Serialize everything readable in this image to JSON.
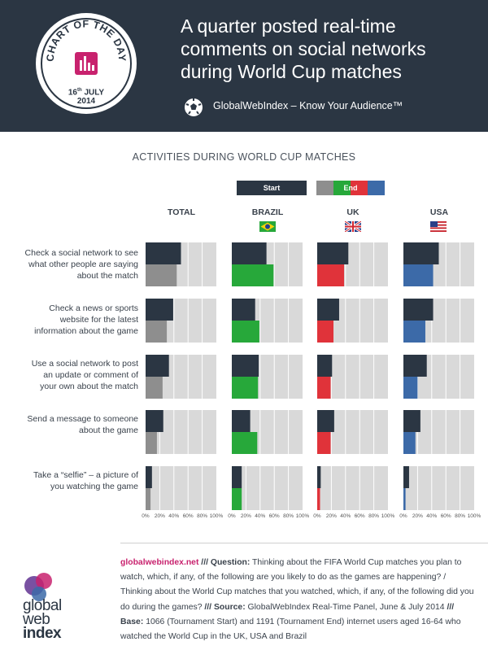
{
  "header": {
    "badge_text": "CHART OF THE DAY",
    "badge_date_day": "16",
    "badge_date_suffix": "th",
    "badge_date_rest": "JULY",
    "badge_date_year": "2014",
    "title": "A quarter posted real-time comments on social networks during World Cup matches",
    "tagline": "GlobalWebIndex – Know Your Audience™"
  },
  "colors": {
    "start": "#2b3643",
    "total_end": "#8e8e8e",
    "brazil_end": "#27a83a",
    "uk_end": "#e0333a",
    "usa_end": "#3c6aa8",
    "track": "#d9d9d9",
    "accent": "#c8226e"
  },
  "chart_data": {
    "type": "bar",
    "title": "ACTIVITIES DURING WORLD CUP MATCHES",
    "legend": {
      "start": "Start",
      "end": "End"
    },
    "columns": [
      "TOTAL",
      "BRAZIL",
      "UK",
      "USA"
    ],
    "categories": [
      "Check a social network to see what other people are saying about the match",
      "Check a news or sports website for the latest information about the game",
      "Use a social network to post an update or comment of your own about the match",
      "Send a message to someone about the game",
      "Take a “selfie” – a picture of you watching the game"
    ],
    "category_lines": [
      [
        "Check a social network to see",
        "what other people are saying",
        "about the match"
      ],
      [
        "Check a news or sports",
        "website for the latest",
        "information about the game"
      ],
      [
        "Use a social network to post",
        "an update or comment of",
        "your own about the match"
      ],
      [
        "Send a message to someone",
        "about the game"
      ],
      [
        "Take a “selfie” – a picture of",
        "you watching the game"
      ]
    ],
    "xlim": [
      0,
      100
    ],
    "x_ticks": [
      "0%",
      "20%",
      "40%",
      "60%",
      "80%",
      "100%"
    ],
    "series": [
      {
        "name": "Start",
        "values": {
          "TOTAL": [
            50,
            39,
            33,
            25,
            9
          ],
          "BRAZIL": [
            49,
            33,
            38,
            26,
            14
          ],
          "UK": [
            44,
            31,
            21,
            24,
            5
          ],
          "USA": [
            50,
            42,
            33,
            24,
            8
          ]
        }
      },
      {
        "name": "End",
        "values": {
          "TOTAL": [
            44,
            30,
            24,
            16,
            7
          ],
          "BRAZIL": [
            59,
            39,
            37,
            36,
            14
          ],
          "UK": [
            38,
            23,
            19,
            19,
            4
          ],
          "USA": [
            42,
            31,
            20,
            17,
            3
          ]
        }
      }
    ]
  },
  "footnote": {
    "site": "globalwebindex.net",
    "sep1": " /// ",
    "question_label": "Question:",
    "question_text": " Thinking about the FIFA World Cup matches you plan to watch, which, if any, of the following are you likely to do as the games are happening? / Thinking about the World Cup matches that you watched, which, if any, of the following did you do during the games? ",
    "sep2": "/// ",
    "source_label": "Source:",
    "source_text": " GlobalWebIndex Real-Time Panel, June & July 2014 ",
    "sep3": "/// ",
    "base_label": "Base:",
    "base_text": " 1066 (Tournament Start) and 1191 (Tournament End) internet users aged 16-64 who watched the World Cup in the UK, USA and Brazil"
  },
  "logo": {
    "line1": "global",
    "line2": "web",
    "line3": "index"
  }
}
